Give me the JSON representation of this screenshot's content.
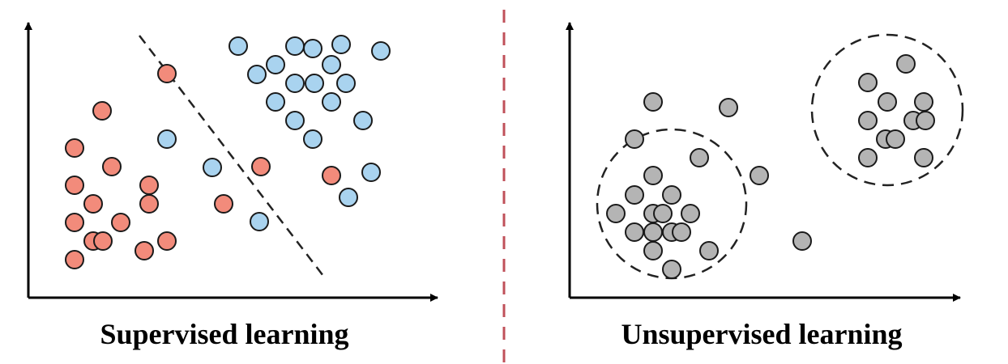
{
  "captions": {
    "left": "Supervised learning",
    "right": "Unsupervised learning"
  },
  "colors": {
    "class_a": "#f28b7b",
    "class_b": "#a9d3ef",
    "unlabeled": "#b4b4b4",
    "outline": "#1a1a1a",
    "divider": "#c0505a"
  },
  "panels": {
    "supervised": {
      "description": "Two labeled classes separated by a dashed decision boundary",
      "classes": [
        "class_a",
        "class_b"
      ]
    },
    "unsupervised": {
      "description": "Unlabeled points grouped into two dashed clusters plus outliers"
    }
  }
}
